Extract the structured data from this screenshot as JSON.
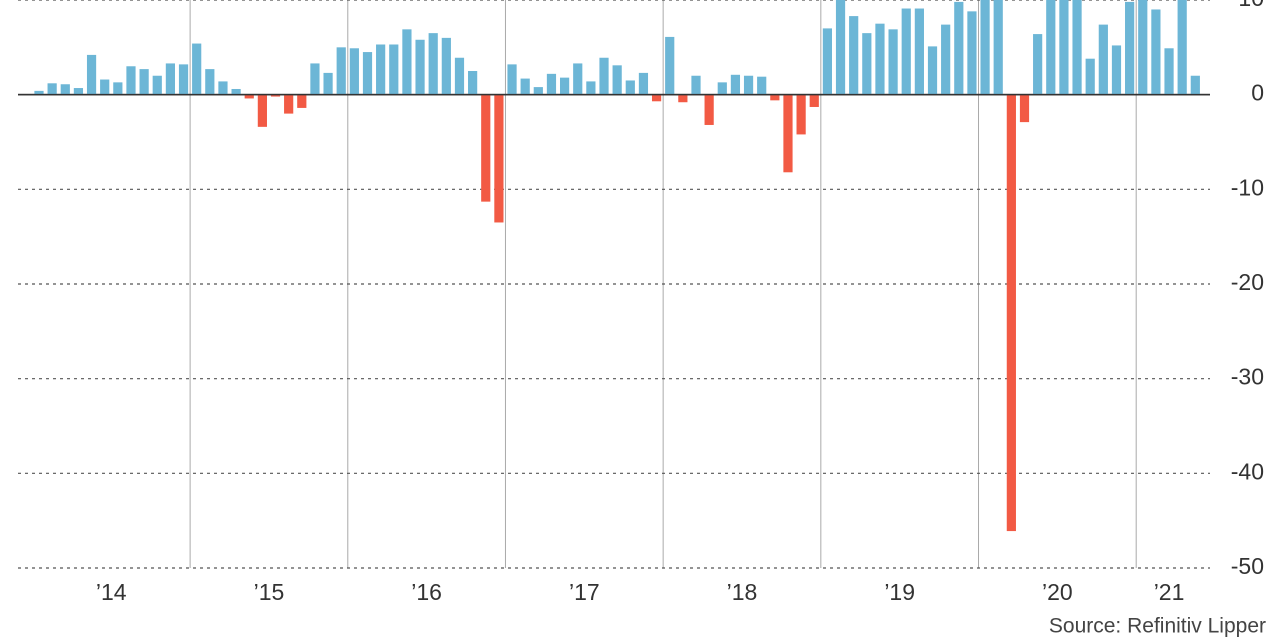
{
  "chart_data": {
    "type": "bar",
    "categories": [
      null,
      null,
      null,
      null,
      null,
      null,
      null,
      null,
      null,
      null,
      null,
      null,
      null,
      null,
      null,
      null,
      null,
      null,
      null,
      null,
      null,
      null,
      null,
      null,
      null,
      null,
      null,
      null,
      null,
      null,
      null,
      null,
      null,
      null,
      null,
      null,
      null,
      null,
      null,
      null,
      null,
      null,
      null,
      null,
      null,
      null,
      null,
      null,
      null,
      null,
      null,
      null,
      null,
      null,
      null,
      null,
      null,
      null,
      null,
      null,
      null,
      null,
      null,
      null,
      null,
      null,
      null,
      null,
      null,
      null,
      null,
      null,
      null,
      null,
      null,
      null,
      null,
      null,
      null,
      null,
      null,
      null,
      null,
      null,
      null,
      null,
      null,
      null,
      null
    ],
    "values": [
      0.4,
      1.2,
      1.1,
      0.7,
      4.2,
      1.6,
      1.3,
      3.0,
      2.7,
      2.0,
      3.3,
      3.2,
      5.4,
      2.7,
      1.4,
      0.6,
      -0.4,
      -3.4,
      -0.2,
      -2.0,
      -1.4,
      3.3,
      2.3,
      5.0,
      4.9,
      4.5,
      5.3,
      5.3,
      6.9,
      5.8,
      6.5,
      6.0,
      3.9,
      2.5,
      -11.3,
      -13.5,
      3.2,
      1.7,
      0.8,
      2.2,
      1.8,
      3.3,
      1.4,
      3.9,
      3.1,
      1.5,
      2.3,
      -0.7,
      6.1,
      -0.8,
      2.0,
      -3.2,
      1.3,
      2.1,
      2.0,
      1.9,
      -0.6,
      -8.2,
      -4.2,
      -1.3,
      7.0,
      11,
      8.3,
      6.5,
      7.5,
      6.9,
      9.1,
      9.1,
      5.1,
      7.4,
      9.8,
      8.8,
      11,
      12,
      -46.1,
      -2.9,
      6.4,
      11,
      12,
      11,
      3.8,
      7.4,
      5.2,
      9.8,
      11,
      9.0,
      4.9,
      11,
      2.0
    ],
    "year_labels": [
      "’14",
      "’15",
      "’16",
      "’17",
      "’18",
      "’19",
      "’20",
      "’21"
    ],
    "positive_color": "#6cb6d6",
    "negative_color": "#f25a44",
    "ylim": [
      -50,
      10
    ],
    "yticks": [
      10,
      0,
      -10,
      -20,
      -30,
      -40,
      -50
    ],
    "grid": true,
    "source": "Source: Refinitiv Lipper"
  }
}
